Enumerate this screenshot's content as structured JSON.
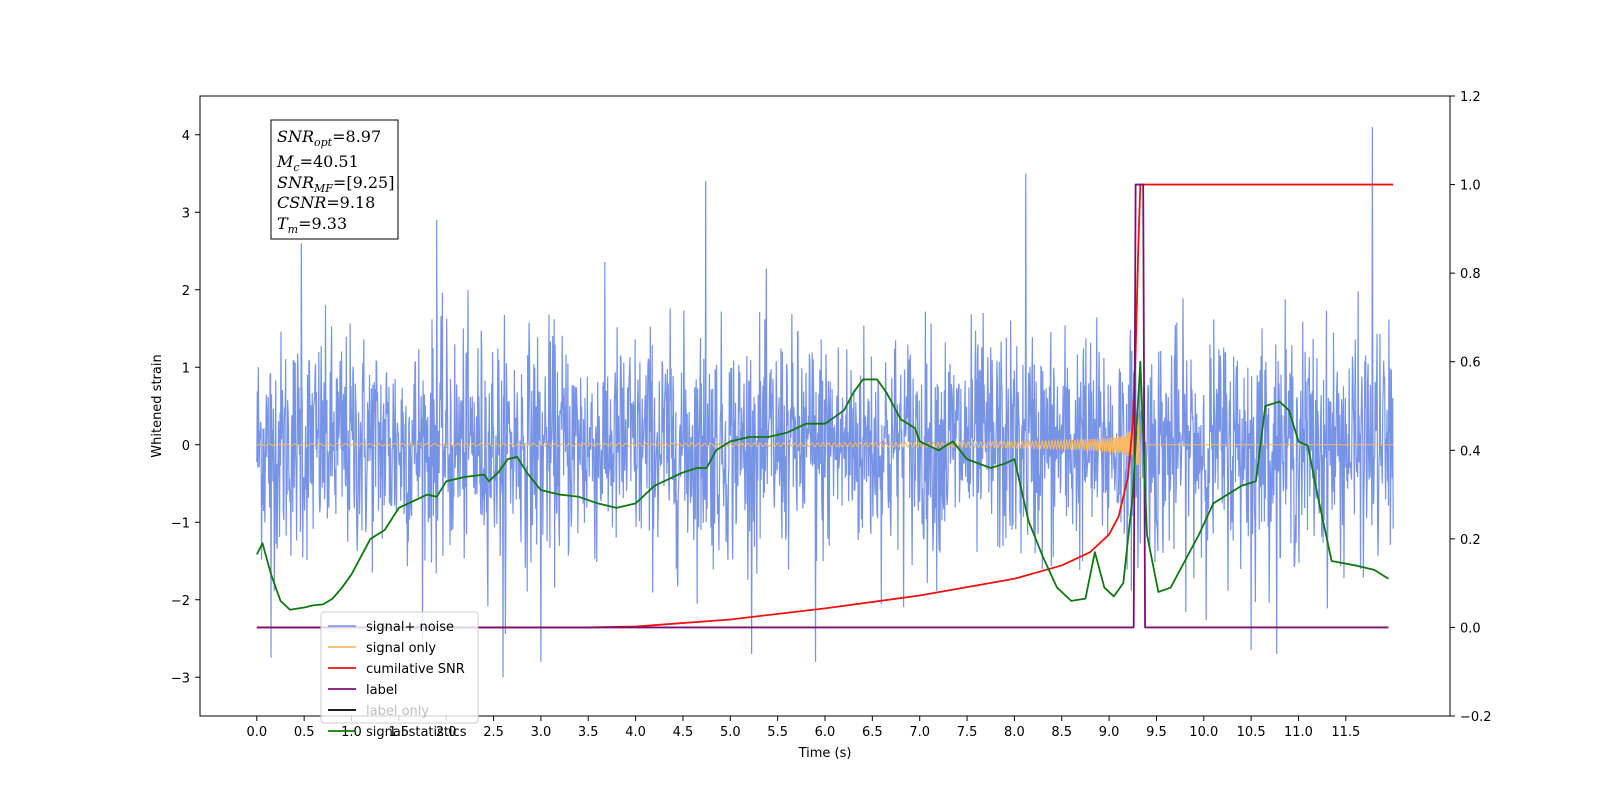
{
  "chart_data": {
    "type": "line",
    "xlabel": "Time (s)",
    "ylabel": "Whitened strain",
    "xlim": [
      -0.6,
      12.6
    ],
    "ylim": [
      -3.5,
      4.5
    ],
    "y2lim": [
      -0.2,
      1.2
    ],
    "x_ticks": [
      "0.0",
      "0.5",
      "1.0",
      "1.5",
      "2.0",
      "2.5",
      "3.0",
      "3.5",
      "4.0",
      "4.5",
      "5.0",
      "5.5",
      "6.0",
      "6.5",
      "7.0",
      "7.5",
      "8.0",
      "8.5",
      "9.0",
      "9.5",
      "10.0",
      "10.5",
      "11.0",
      "11.5"
    ],
    "y_ticks": [
      "4",
      "3",
      "2",
      "1",
      "0",
      "−1",
      "−2",
      "−3"
    ],
    "y2_ticks": [
      "1.2",
      "1.0",
      "0.8",
      "0.6",
      "0.4",
      "0.2",
      "0.0",
      "−0.2"
    ],
    "legend_position": "lower-left",
    "stats_box": [
      {
        "sym": "SNR",
        "sub": "opt",
        "value": "=8.97"
      },
      {
        "sym": "M",
        "sub": "c",
        "value": "=40.51"
      },
      {
        "sym": "SNR",
        "sub": "MF",
        "value": "=[9.25]"
      },
      {
        "sym": "CSNR",
        "sub": "",
        "value": "=9.18"
      },
      {
        "sym": "T",
        "sub": "m",
        "value": "=9.33"
      }
    ],
    "series": [
      {
        "name": "signal+ noise",
        "color": "#7793e6",
        "axis": "left",
        "x_range": [
          0.0,
          12.0
        ],
        "noise_std": 0.72,
        "merger_time": 9.33,
        "extremes": [
          [
            0.47,
            2.6
          ],
          [
            1.9,
            2.9
          ],
          [
            4.74,
            3.4
          ],
          [
            8.12,
            3.5
          ],
          [
            11.78,
            4.1
          ],
          [
            2.6,
            -3.0
          ],
          [
            3.0,
            -2.8
          ],
          [
            5.9,
            -2.8
          ],
          [
            10.5,
            -2.65
          ],
          [
            0.15,
            -2.75
          ]
        ]
      },
      {
        "name": "signal only",
        "color": "#f7b966",
        "axis": "left",
        "x_range": [
          0.0,
          12.0
        ],
        "merger_time": 9.33,
        "peak_amplitude": 0.55
      },
      {
        "name": "cumilative SNR",
        "color": "#ee1111",
        "axis": "right",
        "x": [
          0.0,
          3.5,
          4.0,
          5.0,
          6.0,
          7.0,
          8.0,
          8.5,
          8.8,
          9.0,
          9.1,
          9.2,
          9.25,
          9.28,
          9.31,
          9.33,
          12.0
        ],
        "y": [
          0.0,
          0.0,
          0.002,
          0.018,
          0.043,
          0.072,
          0.11,
          0.14,
          0.17,
          0.21,
          0.25,
          0.34,
          0.46,
          0.62,
          0.87,
          1.0,
          1.0
        ]
      },
      {
        "name": "label",
        "color": "#7b1073",
        "axis": "right",
        "x": [
          0.0,
          9.26,
          9.28,
          9.36,
          9.38,
          11.95
        ],
        "y": [
          0.0,
          0.0,
          1.0,
          1.0,
          0.0,
          0.0
        ]
      },
      {
        "name": "label only",
        "color": "#000000",
        "axis": "right",
        "x": [],
        "y": []
      },
      {
        "name": "signal statistics",
        "color": "#117711",
        "axis": "right",
        "x": [
          0.0,
          0.06,
          0.15,
          0.25,
          0.35,
          0.5,
          0.6,
          0.7,
          0.8,
          0.9,
          1.0,
          1.1,
          1.2,
          1.35,
          1.5,
          1.6,
          1.7,
          1.8,
          1.9,
          2.0,
          2.2,
          2.4,
          2.45,
          2.55,
          2.65,
          2.75,
          2.85,
          3.0,
          3.2,
          3.4,
          3.6,
          3.8,
          4.0,
          4.2,
          4.35,
          4.5,
          4.65,
          4.75,
          4.85,
          5.0,
          5.2,
          5.4,
          5.6,
          5.8,
          6.0,
          6.2,
          6.3,
          6.4,
          6.55,
          6.65,
          6.8,
          6.95,
          7.0,
          7.1,
          7.2,
          7.35,
          7.5,
          7.75,
          7.9,
          8.0,
          8.15,
          8.3,
          8.45,
          8.6,
          8.75,
          8.85,
          8.95,
          9.05,
          9.15,
          9.25,
          9.33,
          9.4,
          9.52,
          9.65,
          9.8,
          9.95,
          10.1,
          10.25,
          10.4,
          10.55,
          10.65,
          10.8,
          10.9,
          11.0,
          11.1,
          11.2,
          11.35,
          11.6,
          11.8,
          11.95
        ],
        "y": [
          0.165,
          0.19,
          0.12,
          0.06,
          0.04,
          0.045,
          0.05,
          0.052,
          0.065,
          0.09,
          0.12,
          0.16,
          0.2,
          0.22,
          0.27,
          0.28,
          0.29,
          0.3,
          0.295,
          0.33,
          0.34,
          0.345,
          0.33,
          0.35,
          0.38,
          0.385,
          0.35,
          0.31,
          0.3,
          0.295,
          0.28,
          0.27,
          0.28,
          0.32,
          0.335,
          0.35,
          0.36,
          0.36,
          0.4,
          0.42,
          0.43,
          0.43,
          0.44,
          0.46,
          0.46,
          0.49,
          0.53,
          0.56,
          0.56,
          0.53,
          0.47,
          0.45,
          0.42,
          0.41,
          0.4,
          0.42,
          0.38,
          0.36,
          0.37,
          0.38,
          0.24,
          0.16,
          0.09,
          0.06,
          0.065,
          0.17,
          0.09,
          0.07,
          0.1,
          0.3,
          0.6,
          0.21,
          0.08,
          0.09,
          0.15,
          0.21,
          0.28,
          0.3,
          0.32,
          0.33,
          0.5,
          0.51,
          0.49,
          0.42,
          0.41,
          0.3,
          0.15,
          0.14,
          0.13,
          0.11
        ]
      }
    ]
  }
}
